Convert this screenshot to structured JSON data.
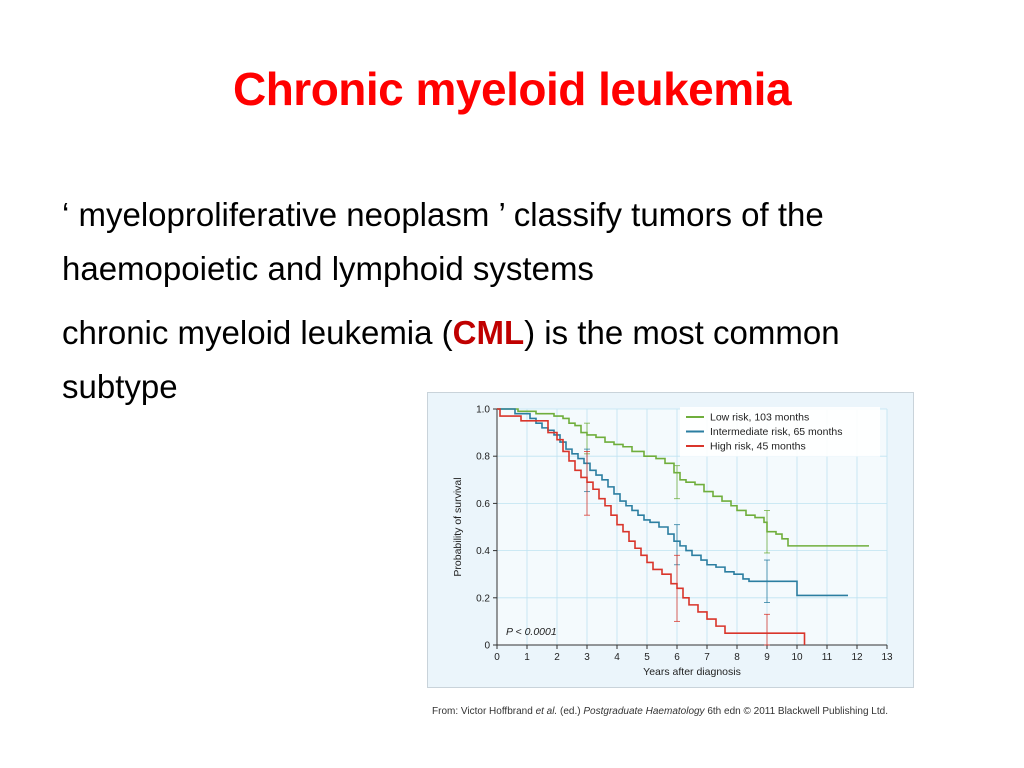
{
  "slide": {
    "title": "Chronic myeloid leukemia",
    "paragraph1": "‘ myeloproliferative neoplasm ’ classify tumors of the haemopoietic and lymphoid systems",
    "paragraph2": {
      "before": "chronic myeloid leukemia (",
      "highlight": "CML",
      "after": ") is the most common subtype"
    },
    "caption": {
      "from": "From: Victor Hoffbrand ",
      "etal": "et al.",
      "ed": " (ed.) ",
      "book": "Postgraduate Haematology",
      "rest": " 6th edn © 2011 Blackwell Publishing Ltd."
    },
    "colors": {
      "title": "#ff0000",
      "highlight": "#c00000"
    }
  },
  "chart_data": {
    "type": "line",
    "subtype": "kaplan-meier-step",
    "xlabel": "Years after diagnosis",
    "ylabel": "Probability of survival",
    "xlim": [
      0,
      13
    ],
    "ylim": [
      0,
      1.0
    ],
    "x_ticks": [
      "0",
      "1",
      "2",
      "3",
      "4",
      "5",
      "6",
      "7",
      "8",
      "9",
      "10",
      "11",
      "12",
      "13"
    ],
    "y_ticks": [
      "0",
      "0.2",
      "0.4",
      "0.6",
      "0.8",
      "1.0"
    ],
    "grid": true,
    "legend_position": "top-right",
    "annotation": "P < 0.0001",
    "series": [
      {
        "name": "Low risk, 103 months",
        "color": "#6fae3c",
        "points": [
          [
            0,
            1.0
          ],
          [
            0.6,
            1.0
          ],
          [
            0.7,
            0.99
          ],
          [
            1.2,
            0.99
          ],
          [
            1.3,
            0.98
          ],
          [
            1.7,
            0.98
          ],
          [
            1.9,
            0.97
          ],
          [
            2.2,
            0.96
          ],
          [
            2.4,
            0.94
          ],
          [
            2.6,
            0.93
          ],
          [
            2.8,
            0.9
          ],
          [
            3.0,
            0.89
          ],
          [
            3.3,
            0.88
          ],
          [
            3.6,
            0.86
          ],
          [
            3.9,
            0.85
          ],
          [
            4.2,
            0.84
          ],
          [
            4.5,
            0.82
          ],
          [
            4.9,
            0.8
          ],
          [
            5.3,
            0.79
          ],
          [
            5.6,
            0.77
          ],
          [
            5.9,
            0.73
          ],
          [
            6.1,
            0.7
          ],
          [
            6.3,
            0.69
          ],
          [
            6.6,
            0.68
          ],
          [
            6.9,
            0.65
          ],
          [
            7.2,
            0.63
          ],
          [
            7.5,
            0.61
          ],
          [
            7.8,
            0.59
          ],
          [
            8.0,
            0.57
          ],
          [
            8.3,
            0.55
          ],
          [
            8.6,
            0.54
          ],
          [
            8.9,
            0.52
          ],
          [
            9.0,
            0.48
          ],
          [
            9.3,
            0.47
          ],
          [
            9.5,
            0.45
          ],
          [
            9.7,
            0.42
          ],
          [
            12.4,
            0.42
          ]
        ],
        "error_bars": [
          [
            3,
            0.88,
            0.81,
            0.94
          ],
          [
            6,
            0.69,
            0.62,
            0.76
          ],
          [
            9,
            0.48,
            0.39,
            0.57
          ]
        ]
      },
      {
        "name": "Intermediate risk, 65 months",
        "color": "#2b7ea1",
        "points": [
          [
            0,
            1.0
          ],
          [
            0.5,
            1.0
          ],
          [
            0.6,
            0.98
          ],
          [
            1.0,
            0.98
          ],
          [
            1.1,
            0.96
          ],
          [
            1.3,
            0.94
          ],
          [
            1.5,
            0.92
          ],
          [
            1.7,
            0.91
          ],
          [
            1.9,
            0.89
          ],
          [
            2.1,
            0.86
          ],
          [
            2.3,
            0.83
          ],
          [
            2.5,
            0.81
          ],
          [
            2.7,
            0.79
          ],
          [
            2.9,
            0.77
          ],
          [
            3.1,
            0.74
          ],
          [
            3.3,
            0.72
          ],
          [
            3.5,
            0.7
          ],
          [
            3.7,
            0.67
          ],
          [
            3.9,
            0.64
          ],
          [
            4.1,
            0.61
          ],
          [
            4.3,
            0.59
          ],
          [
            4.5,
            0.57
          ],
          [
            4.7,
            0.55
          ],
          [
            4.9,
            0.53
          ],
          [
            5.1,
            0.52
          ],
          [
            5.4,
            0.5
          ],
          [
            5.7,
            0.47
          ],
          [
            5.9,
            0.44
          ],
          [
            6.1,
            0.42
          ],
          [
            6.3,
            0.4
          ],
          [
            6.5,
            0.38
          ],
          [
            6.8,
            0.36
          ],
          [
            7.0,
            0.34
          ],
          [
            7.3,
            0.33
          ],
          [
            7.6,
            0.31
          ],
          [
            7.9,
            0.3
          ],
          [
            8.2,
            0.28
          ],
          [
            8.4,
            0.27
          ],
          [
            9.9,
            0.27
          ],
          [
            10.0,
            0.21
          ],
          [
            11.7,
            0.21
          ]
        ],
        "error_bars": [
          [
            3,
            0.74,
            0.65,
            0.83
          ],
          [
            6,
            0.42,
            0.34,
            0.51
          ],
          [
            9,
            0.27,
            0.18,
            0.36
          ]
        ]
      },
      {
        "name": "High risk, 45 months",
        "color": "#d9352b",
        "points": [
          [
            0,
            1.0
          ],
          [
            0.1,
            0.97
          ],
          [
            0.7,
            0.97
          ],
          [
            0.8,
            0.95
          ],
          [
            1.6,
            0.95
          ],
          [
            1.7,
            0.9
          ],
          [
            2.0,
            0.87
          ],
          [
            2.2,
            0.82
          ],
          [
            2.4,
            0.78
          ],
          [
            2.6,
            0.74
          ],
          [
            2.8,
            0.71
          ],
          [
            3.0,
            0.69
          ],
          [
            3.2,
            0.66
          ],
          [
            3.4,
            0.62
          ],
          [
            3.6,
            0.59
          ],
          [
            3.8,
            0.55
          ],
          [
            4.0,
            0.51
          ],
          [
            4.2,
            0.48
          ],
          [
            4.4,
            0.44
          ],
          [
            4.6,
            0.41
          ],
          [
            4.8,
            0.38
          ],
          [
            5.0,
            0.35
          ],
          [
            5.2,
            0.32
          ],
          [
            5.5,
            0.3
          ],
          [
            5.8,
            0.26
          ],
          [
            6.0,
            0.24
          ],
          [
            6.2,
            0.2
          ],
          [
            6.4,
            0.17
          ],
          [
            6.7,
            0.14
          ],
          [
            7.0,
            0.11
          ],
          [
            7.3,
            0.08
          ],
          [
            7.6,
            0.05
          ],
          [
            10.2,
            0.05
          ],
          [
            10.25,
            0.0
          ]
        ],
        "error_bars": [
          [
            3,
            0.69,
            0.55,
            0.82
          ],
          [
            6,
            0.24,
            0.1,
            0.38
          ],
          [
            9,
            0.05,
            0.0,
            0.13
          ]
        ]
      }
    ]
  }
}
